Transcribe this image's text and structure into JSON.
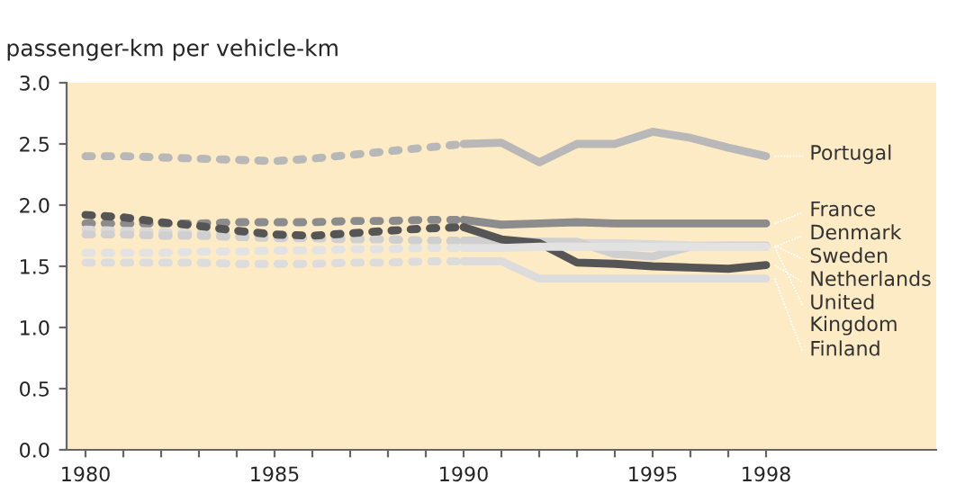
{
  "chart_data": {
    "type": "line",
    "ylabel": "passenger-km per vehicle-km",
    "xlim": [
      1979.5,
      2002.5
    ],
    "ylim": [
      0,
      3
    ],
    "xticks": [
      1980,
      {
        "value": 1981,
        "label": null
      },
      {
        "value": 1982,
        "label": null
      },
      {
        "value": 1983,
        "label": null
      },
      {
        "value": 1984,
        "label": null
      },
      1985,
      {
        "value": 1986,
        "label": null
      },
      {
        "value": 1987,
        "label": null
      },
      {
        "value": 1988,
        "label": null
      },
      {
        "value": 1989,
        "label": null
      },
      1990,
      {
        "value": 1991,
        "label": null
      },
      {
        "value": 1992,
        "label": null
      },
      {
        "value": 1993,
        "label": null
      },
      {
        "value": 1994,
        "label": null
      },
      1995,
      {
        "value": 1996,
        "label": null
      },
      {
        "value": 1997,
        "label": null
      },
      1998
    ],
    "yticks": [
      {
        "value": 0,
        "label": "0.0"
      },
      0.5,
      {
        "value": 1,
        "label": "1.0"
      },
      1.5,
      {
        "value": 2,
        "label": "2.0"
      },
      2.5,
      {
        "value": 3,
        "label": "3.0"
      }
    ],
    "grid": false,
    "legend": false,
    "marker": "none",
    "series": [
      {
        "name": "Portugal",
        "color": "#b8b8b8",
        "line_style": "solid",
        "x": [
          1990,
          1991,
          1992,
          1993,
          1994,
          1995,
          1996,
          1997,
          1998
        ],
        "values": [
          2.5,
          2.51,
          2.35,
          2.5,
          2.5,
          2.6,
          2.55,
          2.47,
          2.4
        ]
      },
      {
        "name": "France",
        "color": "#8c8c8c",
        "line_style": "solid",
        "x": [
          1990,
          1991,
          1992,
          1993,
          1994,
          1995,
          1996,
          1997,
          1998
        ],
        "values": [
          1.88,
          1.84,
          1.85,
          1.86,
          1.85,
          1.85,
          1.85,
          1.85,
          1.85
        ]
      },
      {
        "name": "Denmark",
        "color": "#d9d9d9",
        "line_style": "solid",
        "x": [
          1990,
          1991,
          1992,
          1993,
          1994,
          1995,
          1996,
          1997,
          1998
        ],
        "values": [
          1.7,
          1.7,
          1.7,
          1.69,
          1.69,
          1.68,
          1.67,
          1.67,
          1.66
        ]
      },
      {
        "name": "Sweden",
        "color": "#cfcfcf",
        "line_style": "solid",
        "x": [
          1990,
          1991,
          1992,
          1993,
          1994,
          1995,
          1996,
          1997,
          1998
        ],
        "values": [
          1.71,
          1.71,
          1.7,
          1.7,
          1.6,
          1.58,
          1.66,
          1.67,
          1.67
        ]
      },
      {
        "name": "Netherlands",
        "color": "#555555",
        "line_style": "solid",
        "x": [
          1990,
          1991,
          1992,
          1993,
          1994,
          1995,
          1996,
          1997,
          1998
        ],
        "values": [
          1.82,
          1.72,
          1.69,
          1.53,
          1.52,
          1.5,
          1.49,
          1.48,
          1.51
        ]
      },
      {
        "name": "United Kingdom",
        "color": "#e2e2e2",
        "line_style": "solid",
        "x": [
          1990,
          1991,
          1992,
          1993,
          1994,
          1995,
          1996,
          1997,
          1998
        ],
        "values": [
          1.65,
          1.65,
          1.66,
          1.66,
          1.66,
          1.66,
          1.66,
          1.66,
          1.66
        ]
      },
      {
        "name": "Finland",
        "color": "#dcdcdc",
        "line_style": "solid",
        "x": [
          1990,
          1991,
          1992,
          1993,
          1994,
          1995,
          1996,
          1997,
          1998
        ],
        "values": [
          1.54,
          1.54,
          1.4,
          1.4,
          1.4,
          1.4,
          1.4,
          1.4,
          1.4
        ]
      },
      {
        "color": "#b8b8b8",
        "line_style": "dotted",
        "x": [
          1980,
          1981,
          1982,
          1983,
          1984,
          1985,
          1986,
          1987,
          1988,
          1989,
          1990
        ],
        "values": [
          2.4,
          2.4,
          2.39,
          2.38,
          2.37,
          2.36,
          2.38,
          2.41,
          2.44,
          2.47,
          2.5
        ]
      },
      {
        "color": "#8c8c8c",
        "line_style": "dotted",
        "x": [
          1980,
          1981,
          1982,
          1983,
          1984,
          1985,
          1986,
          1987,
          1988,
          1989,
          1990
        ],
        "values": [
          1.85,
          1.85,
          1.85,
          1.85,
          1.86,
          1.86,
          1.86,
          1.87,
          1.87,
          1.88,
          1.88
        ]
      },
      {
        "color": "#d9d9d9",
        "line_style": "dotted",
        "x": [
          1980,
          1981,
          1982,
          1983,
          1984,
          1985,
          1986,
          1987,
          1988,
          1989,
          1990
        ],
        "values": [
          1.8,
          1.79,
          1.78,
          1.77,
          1.76,
          1.75,
          1.74,
          1.73,
          1.72,
          1.71,
          1.7
        ]
      },
      {
        "color": "#cfcfcf",
        "line_style": "dotted",
        "x": [
          1980,
          1981,
          1982,
          1983,
          1984,
          1985,
          1986,
          1987,
          1988,
          1989,
          1990
        ],
        "values": [
          1.76,
          1.76,
          1.75,
          1.75,
          1.74,
          1.73,
          1.73,
          1.72,
          1.72,
          1.71,
          1.71
        ]
      },
      {
        "color": "#555555",
        "line_style": "dotted",
        "x": [
          1980,
          1981,
          1982,
          1983,
          1984,
          1985,
          1986,
          1987,
          1988,
          1989,
          1990
        ],
        "values": [
          1.92,
          1.9,
          1.86,
          1.83,
          1.79,
          1.76,
          1.75,
          1.77,
          1.79,
          1.81,
          1.82
        ]
      },
      {
        "color": "#e2e2e2",
        "line_style": "dotted",
        "x": [
          1980,
          1981,
          1982,
          1983,
          1984,
          1985,
          1986,
          1987,
          1988,
          1989,
          1990
        ],
        "values": [
          1.61,
          1.61,
          1.61,
          1.62,
          1.62,
          1.63,
          1.63,
          1.64,
          1.64,
          1.65,
          1.65
        ]
      },
      {
        "color": "#dcdcdc",
        "line_style": "dotted",
        "x": [
          1980,
          1981,
          1982,
          1983,
          1984,
          1985,
          1986,
          1987,
          1988,
          1989,
          1990
        ],
        "values": [
          1.53,
          1.53,
          1.53,
          1.53,
          1.52,
          1.52,
          1.52,
          1.53,
          1.53,
          1.54,
          1.54
        ]
      }
    ]
  }
}
